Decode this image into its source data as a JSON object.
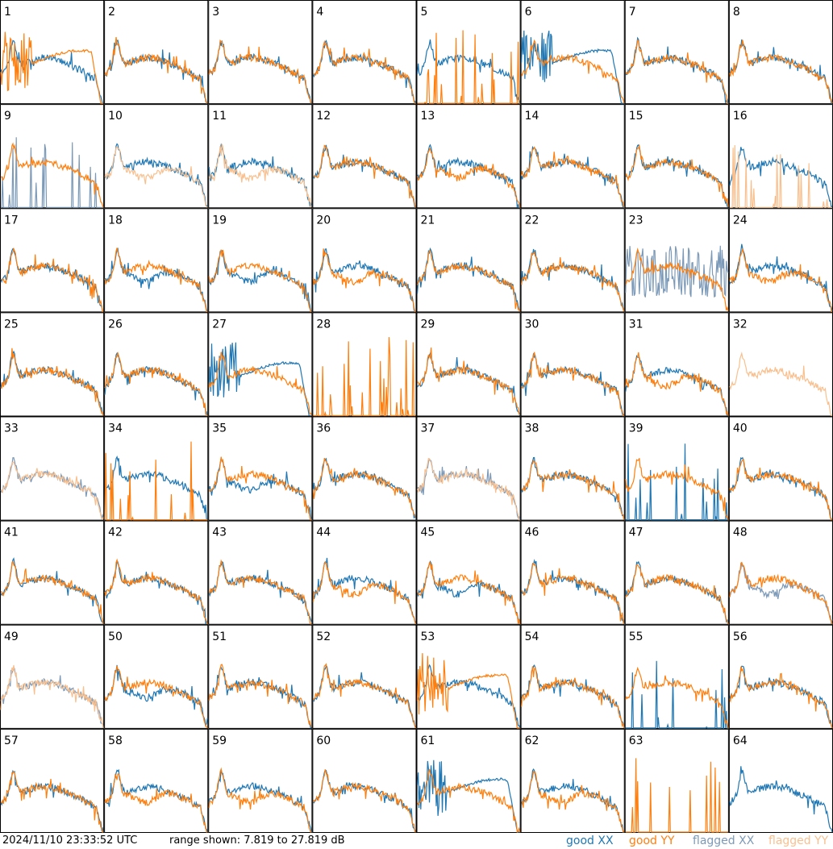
{
  "colors": {
    "good_xx": "#1f77b4",
    "good_yy": "#ff7f0e",
    "flagged_xx": "#7c9ab8",
    "flagged_yy": "#f9c08f"
  },
  "footer": {
    "timestamp": "2024/11/10 23:33:52 UTC",
    "range_text": "range shown: 7.819 to 27.819 dB",
    "legend_good_xx": "good XX",
    "legend_good_yy": "good YY",
    "legend_flagged_xx": "flagged XX",
    "legend_flagged_yy": "flagged YY"
  },
  "chart_data": {
    "type": "line",
    "y_range_db": [
      7.819,
      27.819
    ],
    "grid": "8x8 small multiples",
    "tiles": [
      {
        "id": "1",
        "xx": "good",
        "yy": "good",
        "yy_shape": "hump_drop",
        "xx_shape": "normal"
      },
      {
        "id": "2",
        "xx": "good",
        "yy": "good",
        "xx_shape": "normal",
        "yy_shape": "normal"
      },
      {
        "id": "3",
        "xx": "good",
        "yy": "good",
        "xx_shape": "normal",
        "yy_shape": "normal"
      },
      {
        "id": "4",
        "xx": "good",
        "yy": "good",
        "xx_shape": "normal",
        "yy_shape": "normal"
      },
      {
        "id": "5",
        "xx": "good",
        "yy": "good",
        "xx_shape": "normal",
        "yy_shape": "spikes"
      },
      {
        "id": "6",
        "xx": "good",
        "yy": "good",
        "xx_shape": "hump_drop",
        "yy_shape": "normal"
      },
      {
        "id": "7",
        "xx": "good",
        "yy": "good",
        "xx_shape": "normal",
        "yy_shape": "normal"
      },
      {
        "id": "8",
        "xx": "good",
        "yy": "good",
        "xx_shape": "normal",
        "yy_shape": "normal"
      },
      {
        "id": "9",
        "xx": "flagged",
        "yy": "good",
        "xx_shape": "spikes",
        "yy_shape": "normal"
      },
      {
        "id": "10",
        "xx": "good",
        "yy": "flagged",
        "xx_shape": "normal",
        "yy_shape": "deep"
      },
      {
        "id": "11",
        "xx": "good",
        "yy": "flagged",
        "xx_shape": "normal",
        "yy_shape": "deep"
      },
      {
        "id": "12",
        "xx": "good",
        "yy": "good",
        "xx_shape": "normal",
        "yy_shape": "normal"
      },
      {
        "id": "13",
        "xx": "good",
        "yy": "good",
        "xx_shape": "normal",
        "yy_shape": "deep"
      },
      {
        "id": "14",
        "xx": "good",
        "yy": "good",
        "xx_shape": "normal",
        "yy_shape": "normal"
      },
      {
        "id": "15",
        "xx": "good",
        "yy": "good",
        "xx_shape": "normal",
        "yy_shape": "normal"
      },
      {
        "id": "16",
        "xx": "good",
        "yy": "flagged",
        "xx_shape": "normal",
        "yy_shape": "spikes"
      },
      {
        "id": "17",
        "xx": "good",
        "yy": "good",
        "xx_shape": "normal",
        "yy_shape": "normal"
      },
      {
        "id": "18",
        "xx": "good",
        "yy": "good",
        "xx_shape": "deep",
        "yy_shape": "normal"
      },
      {
        "id": "19",
        "xx": "good",
        "yy": "good",
        "xx_shape": "deep",
        "yy_shape": "normal"
      },
      {
        "id": "20",
        "xx": "good",
        "yy": "good",
        "xx_shape": "normal",
        "yy_shape": "deep"
      },
      {
        "id": "21",
        "xx": "good",
        "yy": "good",
        "xx_shape": "normal",
        "yy_shape": "normal"
      },
      {
        "id": "22",
        "xx": "good",
        "yy": "good",
        "xx_shape": "normal",
        "yy_shape": "normal"
      },
      {
        "id": "23",
        "xx": "flagged",
        "yy": "good",
        "xx_shape": "noise",
        "yy_shape": "normal"
      },
      {
        "id": "24",
        "xx": "good",
        "yy": "good",
        "xx_shape": "normal",
        "yy_shape": "deep"
      },
      {
        "id": "25",
        "xx": "good",
        "yy": "good",
        "xx_shape": "normal",
        "yy_shape": "normal"
      },
      {
        "id": "26",
        "xx": "good",
        "yy": "good",
        "xx_shape": "normal",
        "yy_shape": "normal"
      },
      {
        "id": "27",
        "xx": "good",
        "yy": "good",
        "xx_shape": "hump_drop",
        "yy_shape": "normal"
      },
      {
        "id": "28",
        "xx": "good",
        "yy": "good",
        "xx_shape": "none",
        "yy_shape": "spikes"
      },
      {
        "id": "29",
        "xx": "good",
        "yy": "good",
        "xx_shape": "normal",
        "yy_shape": "normal"
      },
      {
        "id": "30",
        "xx": "good",
        "yy": "good",
        "xx_shape": "normal",
        "yy_shape": "normal"
      },
      {
        "id": "31",
        "xx": "good",
        "yy": "good",
        "xx_shape": "normal",
        "yy_shape": "deep"
      },
      {
        "id": "32",
        "xx": "good",
        "yy": "flagged",
        "xx_shape": "none",
        "yy_shape": "normal"
      },
      {
        "id": "33",
        "xx": "flagged",
        "yy": "flagged",
        "xx_shape": "normal",
        "yy_shape": "normal"
      },
      {
        "id": "34",
        "xx": "good",
        "yy": "good",
        "xx_shape": "normal",
        "yy_shape": "spikes"
      },
      {
        "id": "35",
        "xx": "good",
        "yy": "good",
        "xx_shape": "deep",
        "yy_shape": "normal"
      },
      {
        "id": "36",
        "xx": "good",
        "yy": "good",
        "xx_shape": "normal",
        "yy_shape": "normal"
      },
      {
        "id": "37",
        "xx": "flagged",
        "yy": "flagged",
        "xx_shape": "normal",
        "yy_shape": "normal"
      },
      {
        "id": "38",
        "xx": "good",
        "yy": "good",
        "xx_shape": "normal",
        "yy_shape": "normal"
      },
      {
        "id": "39",
        "xx": "good",
        "yy": "good",
        "xx_shape": "spikes",
        "yy_shape": "normal"
      },
      {
        "id": "40",
        "xx": "good",
        "yy": "good",
        "xx_shape": "normal",
        "yy_shape": "normal"
      },
      {
        "id": "41",
        "xx": "good",
        "yy": "good",
        "xx_shape": "normal",
        "yy_shape": "normal"
      },
      {
        "id": "42",
        "xx": "good",
        "yy": "good",
        "xx_shape": "normal",
        "yy_shape": "normal"
      },
      {
        "id": "43",
        "xx": "good",
        "yy": "good",
        "xx_shape": "normal",
        "yy_shape": "normal"
      },
      {
        "id": "44",
        "xx": "good",
        "yy": "good",
        "xx_shape": "normal",
        "yy_shape": "deep"
      },
      {
        "id": "45",
        "xx": "good",
        "yy": "good",
        "xx_shape": "deep",
        "yy_shape": "normal"
      },
      {
        "id": "46",
        "xx": "good",
        "yy": "good",
        "xx_shape": "normal",
        "yy_shape": "normal"
      },
      {
        "id": "47",
        "xx": "good",
        "yy": "good",
        "xx_shape": "normal",
        "yy_shape": "normal"
      },
      {
        "id": "48",
        "xx": "flagged",
        "yy": "good",
        "xx_shape": "deep",
        "yy_shape": "normal"
      },
      {
        "id": "49",
        "xx": "flagged",
        "yy": "flagged",
        "xx_shape": "normal",
        "yy_shape": "normal"
      },
      {
        "id": "50",
        "xx": "good",
        "yy": "good",
        "xx_shape": "deep",
        "yy_shape": "normal"
      },
      {
        "id": "51",
        "xx": "good",
        "yy": "good",
        "xx_shape": "normal",
        "yy_shape": "normal"
      },
      {
        "id": "52",
        "xx": "good",
        "yy": "good",
        "xx_shape": "normal",
        "yy_shape": "normal"
      },
      {
        "id": "53",
        "xx": "good",
        "yy": "good",
        "xx_shape": "normal",
        "yy_shape": "hump_drop"
      },
      {
        "id": "54",
        "xx": "good",
        "yy": "good",
        "xx_shape": "normal",
        "yy_shape": "normal"
      },
      {
        "id": "55",
        "xx": "good",
        "yy": "good",
        "xx_shape": "spikes",
        "yy_shape": "normal"
      },
      {
        "id": "56",
        "xx": "good",
        "yy": "good",
        "xx_shape": "normal",
        "yy_shape": "normal"
      },
      {
        "id": "57",
        "xx": "good",
        "yy": "good",
        "xx_shape": "normal",
        "yy_shape": "normal"
      },
      {
        "id": "58",
        "xx": "good",
        "yy": "good",
        "xx_shape": "normal",
        "yy_shape": "deep"
      },
      {
        "id": "59",
        "xx": "good",
        "yy": "good",
        "xx_shape": "normal",
        "yy_shape": "deep"
      },
      {
        "id": "60",
        "xx": "good",
        "yy": "good",
        "xx_shape": "normal",
        "yy_shape": "normal"
      },
      {
        "id": "61",
        "xx": "good",
        "yy": "good",
        "xx_shape": "hump_drop",
        "yy_shape": "normal"
      },
      {
        "id": "62",
        "xx": "good",
        "yy": "good",
        "xx_shape": "normal",
        "yy_shape": "deep"
      },
      {
        "id": "63",
        "xx": "good",
        "yy": "good",
        "xx_shape": "none",
        "yy_shape": "spikes"
      },
      {
        "id": "64",
        "xx": "good",
        "yy": "good",
        "xx_shape": "normal",
        "yy_shape": "none"
      }
    ]
  }
}
